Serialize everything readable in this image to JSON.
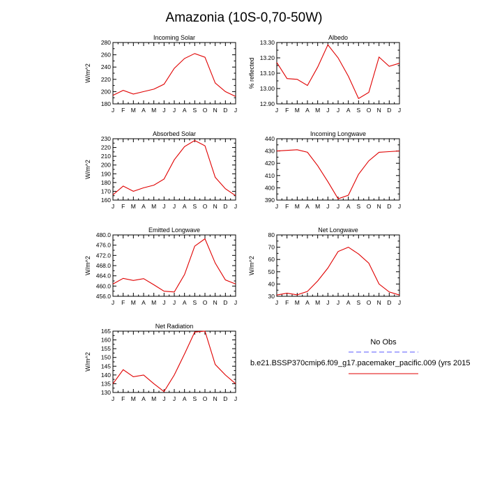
{
  "figure": {
    "title": "Amazonia (10S-0,70-50W)",
    "legend": {
      "no_obs_label": "No Obs",
      "model_label": "b.e21.BSSP370cmip6.f09_g17.pacemaker_pacific.009 (yrs 2015",
      "obs_color": "#7b7bff",
      "model_color": "#e00000"
    }
  },
  "chart_data": [
    {
      "type": "line",
      "title": "Incoming Solar",
      "ylabel": "W/m^2",
      "categories": [
        "J",
        "F",
        "M",
        "A",
        "M",
        "J",
        "J",
        "A",
        "S",
        "O",
        "N",
        "D",
        "J"
      ],
      "ylim": [
        180,
        280
      ],
      "yticks": [
        "180",
        "200",
        "220",
        "240",
        "260",
        "280"
      ],
      "series": [
        {
          "name": "model",
          "color": "#e00000",
          "values": [
            194,
            202,
            196,
            200,
            204,
            212,
            238,
            254,
            262,
            256,
            214,
            200,
            192
          ]
        }
      ]
    },
    {
      "type": "line",
      "title": "Albedo",
      "ylabel": "% reflected",
      "categories": [
        "J",
        "F",
        "M",
        "A",
        "M",
        "J",
        "J",
        "A",
        "S",
        "O",
        "N",
        "D",
        "J"
      ],
      "ylim": [
        12.9,
        13.3
      ],
      "yticks": [
        "12.90",
        "13.00",
        "13.10",
        "13.20",
        "13.30"
      ],
      "series": [
        {
          "name": "model",
          "color": "#e00000",
          "values": [
            13.17,
            13.065,
            13.06,
            13.02,
            13.14,
            13.285,
            13.2,
            13.08,
            12.935,
            12.975,
            13.205,
            13.145,
            13.165
          ]
        }
      ]
    },
    {
      "type": "line",
      "title": "Absorbed Solar",
      "ylabel": "W/m^2",
      "categories": [
        "J",
        "F",
        "M",
        "A",
        "M",
        "J",
        "J",
        "A",
        "S",
        "O",
        "N",
        "D",
        "J"
      ],
      "ylim": [
        160,
        230
      ],
      "yticks": [
        "160",
        "170",
        "180",
        "190",
        "200",
        "210",
        "220",
        "230"
      ],
      "series": [
        {
          "name": "model",
          "color": "#e00000",
          "values": [
            166,
            176,
            170,
            174,
            177,
            184,
            206,
            221,
            228,
            222,
            186,
            173,
            165
          ]
        }
      ]
    },
    {
      "type": "line",
      "title": "Incoming Longwave",
      "ylabel": "",
      "categories": [
        "J",
        "F",
        "M",
        "A",
        "M",
        "J",
        "J",
        "A",
        "S",
        "O",
        "N",
        "D",
        "J"
      ],
      "ylim": [
        390,
        440
      ],
      "yticks": [
        "390",
        "400",
        "410",
        "420",
        "430",
        "440"
      ],
      "series": [
        {
          "name": "model",
          "color": "#e00000",
          "values": [
            430,
            430.5,
            431,
            429,
            418,
            405,
            391,
            394,
            411,
            422,
            429,
            429.5,
            430
          ]
        }
      ]
    },
    {
      "type": "line",
      "title": "Emitted Longwave",
      "ylabel": "W/m^2",
      "categories": [
        "J",
        "F",
        "M",
        "A",
        "M",
        "J",
        "J",
        "A",
        "S",
        "O",
        "N",
        "D",
        "J"
      ],
      "ylim": [
        456,
        480
      ],
      "yticks": [
        "456.0",
        "460.0",
        "464.0",
        "468.0",
        "472.0",
        "476.0",
        "480.0"
      ],
      "series": [
        {
          "name": "model",
          "color": "#e00000",
          "values": [
            460.8,
            463,
            462.2,
            462.9,
            460.5,
            458,
            457.7,
            464.5,
            475.6,
            478.5,
            469,
            462.4,
            460.8
          ]
        }
      ]
    },
    {
      "type": "line",
      "title": "Net Longwave",
      "ylabel": "W/m^2",
      "categories": [
        "J",
        "F",
        "M",
        "A",
        "M",
        "J",
        "J",
        "A",
        "S",
        "O",
        "N",
        "D",
        "J"
      ],
      "ylim": [
        30,
        80
      ],
      "yticks": [
        "30",
        "40",
        "50",
        "60",
        "70",
        "80"
      ],
      "series": [
        {
          "name": "model",
          "color": "#e00000",
          "values": [
            31,
            32.5,
            31.2,
            34,
            42.5,
            53,
            66.5,
            70,
            64.5,
            57,
            40,
            33.5,
            31
          ]
        }
      ]
    },
    {
      "type": "line",
      "title": "Net Radiation",
      "ylabel": "W/m^2",
      "categories": [
        "J",
        "F",
        "M",
        "A",
        "M",
        "J",
        "J",
        "A",
        "S",
        "O",
        "N",
        "D",
        "J"
      ],
      "ylim": [
        130,
        165
      ],
      "yticks": [
        "130",
        "135",
        "140",
        "145",
        "150",
        "155",
        "160",
        "165"
      ],
      "series": [
        {
          "name": "model",
          "color": "#e00000",
          "values": [
            135,
            143,
            139,
            140,
            135,
            130.5,
            140,
            152,
            164.5,
            165,
            146,
            140,
            135
          ]
        }
      ]
    }
  ]
}
